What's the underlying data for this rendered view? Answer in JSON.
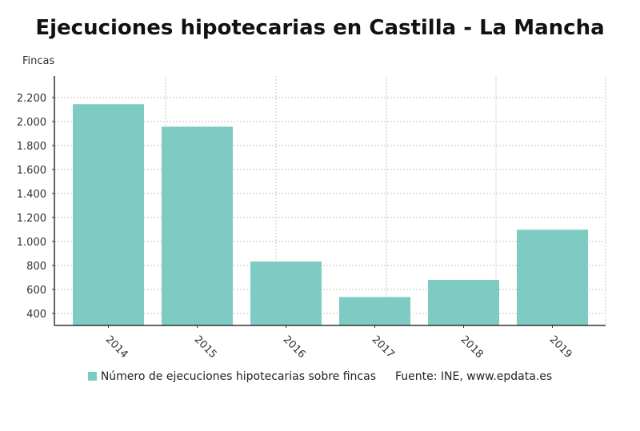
{
  "chart_data": {
    "type": "bar",
    "title": "Ejecuciones hipotecarias en Castilla - La Mancha",
    "ylabel": "Fincas",
    "xlabel": "",
    "categories": [
      "2014",
      "2015",
      "2016",
      "2017",
      "2018",
      "2019"
    ],
    "series": [
      {
        "name": "Número de ejecuciones hipotecarias sobre fincas",
        "values": [
          2145,
          1957,
          833,
          537,
          680,
          1098
        ]
      }
    ],
    "ylim": [
      300,
      2380
    ],
    "yticks": [
      400,
      600,
      800,
      1000,
      1200,
      1400,
      1600,
      1800,
      2000,
      2200
    ],
    "ytick_labels": [
      "400",
      "600",
      "800",
      "1.000",
      "1.200",
      "1.400",
      "1.600",
      "1.800",
      "2.000",
      "2.200"
    ],
    "grid": true,
    "legend_placement": "bottom",
    "color": "#7dcbc3",
    "source": "Fuente: INE, www.epdata.es"
  }
}
